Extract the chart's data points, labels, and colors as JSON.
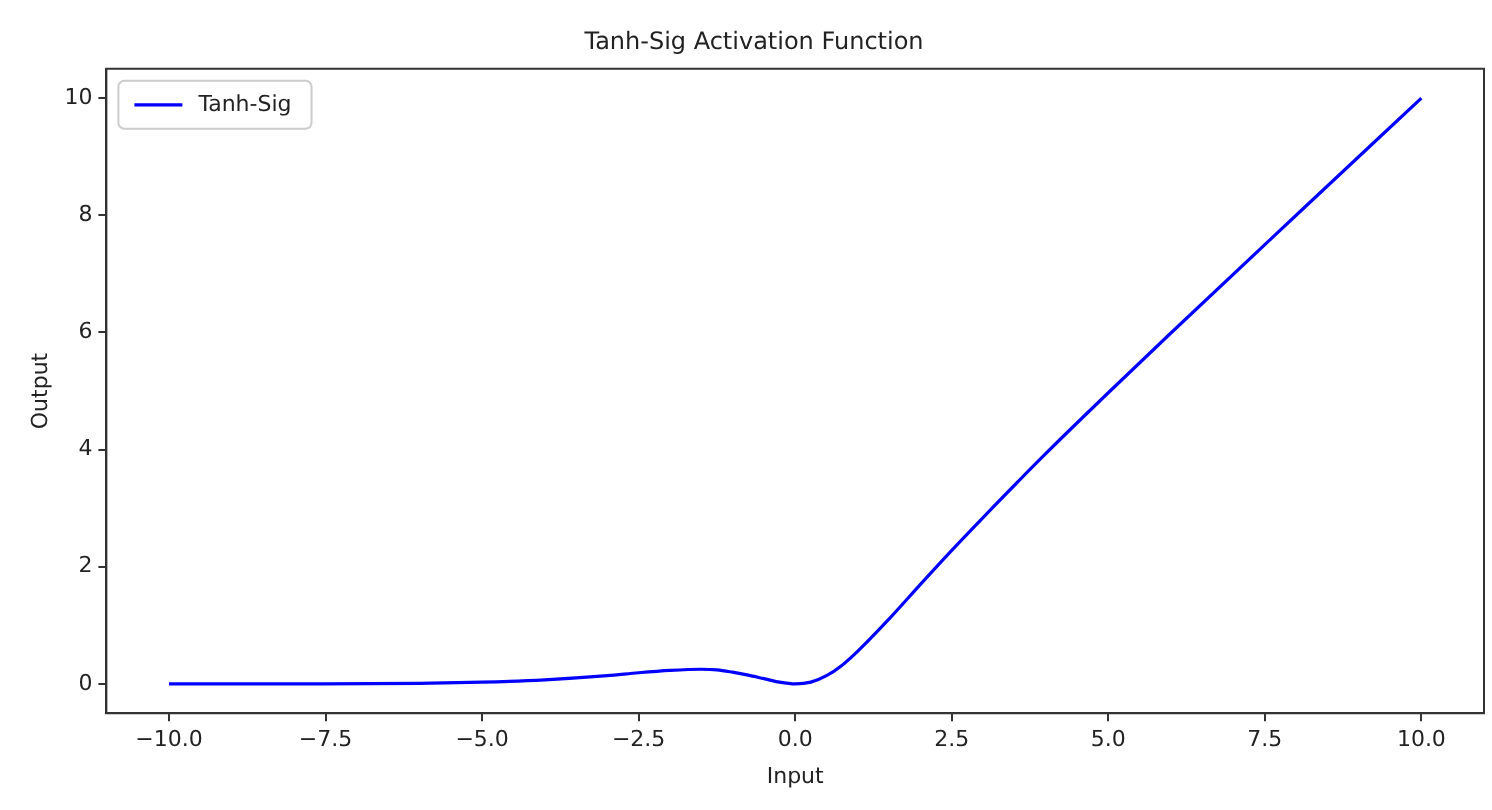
{
  "chart_data": {
    "type": "line",
    "title": "Tanh-Sig Activation Function",
    "xlabel": "Input",
    "ylabel": "Output",
    "x": [
      -10,
      -8,
      -6,
      -5,
      -4,
      -3,
      -2.5,
      -2,
      -1.5,
      -1.25,
      -1,
      -0.75,
      -0.5,
      -0.25,
      0,
      0.25,
      0.5,
      0.75,
      1,
      1.5,
      2,
      2.5,
      3,
      4,
      5,
      6,
      8,
      10
    ],
    "series": [
      {
        "name": "Tanh-Sig",
        "color": "#0000ff",
        "values": [
          0,
          0,
          0.01,
          0.03,
          0.07,
          0.14,
          0.19,
          0.23,
          0.25,
          0.24,
          0.2,
          0.15,
          0.09,
          0.03,
          0,
          0.03,
          0.14,
          0.32,
          0.56,
          1.11,
          1.7,
          2.28,
          2.84,
          3.93,
          4.97,
          5.99,
          8,
          10
        ]
      }
    ],
    "xlim": [
      -11,
      11
    ],
    "ylim": [
      -0.5,
      10.5
    ],
    "xticks": [
      {
        "value": -10,
        "label": "−10.0"
      },
      {
        "value": -7.5,
        "label": "−7.5"
      },
      {
        "value": -5,
        "label": "−5.0"
      },
      {
        "value": -2.5,
        "label": "−2.5"
      },
      {
        "value": 0,
        "label": "0.0"
      },
      {
        "value": 2.5,
        "label": "2.5"
      },
      {
        "value": 5,
        "label": "5.0"
      },
      {
        "value": 7.5,
        "label": "7.5"
      },
      {
        "value": 10,
        "label": "10.0"
      }
    ],
    "yticks": [
      0,
      2,
      4,
      6,
      8,
      10
    ],
    "grid": false,
    "legend": "top left",
    "line_style": "solid",
    "marker": "none"
  }
}
